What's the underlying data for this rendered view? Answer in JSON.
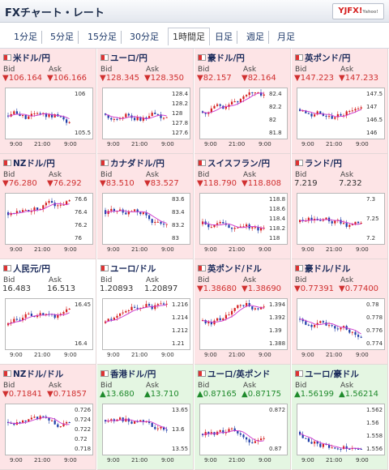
{
  "header": {
    "title": "FXチャート・レート",
    "logo_text": "YJFX!",
    "logo_sub": "Yahoo!"
  },
  "tabs": [
    {
      "label": "1分足",
      "active": false
    },
    {
      "label": "5分足",
      "active": false
    },
    {
      "label": "15分足",
      "active": false
    },
    {
      "label": "30分足",
      "active": false
    },
    {
      "label": "1時間足",
      "active": true
    },
    {
      "label": "日足",
      "active": false
    },
    {
      "label": "週足",
      "active": false
    },
    {
      "label": "月足",
      "active": false
    }
  ],
  "labels": {
    "bid": "Bid",
    "ask": "Ask",
    "times": [
      "9:00",
      "21:00",
      "9:00"
    ]
  },
  "colors": {
    "pink": "#fde4e6",
    "green": "#e4f6e2",
    "up_candle": "#d52020",
    "down_candle": "#1f3ea8",
    "ma_line": "#cc33cc"
  },
  "pairs": [
    {
      "name": "米ドル/円",
      "bid": "▼106.164",
      "ask": "▼106.166",
      "dir": "down",
      "ticks": [
        "106",
        "105.5"
      ]
    },
    {
      "name": "ユーロ/円",
      "bid": "▼128.345",
      "ask": "▼128.350",
      "dir": "down",
      "ticks": [
        "128.4",
        "128.2",
        "128",
        "127.8",
        "127.6"
      ]
    },
    {
      "name": "豪ドル/円",
      "bid": "▼82.157",
      "ask": "▼82.164",
      "dir": "down",
      "ticks": [
        "82.4",
        "82.2",
        "82",
        "81.8"
      ]
    },
    {
      "name": "英ポンド/円",
      "bid": "▼147.223",
      "ask": "▼147.233",
      "dir": "down",
      "ticks": [
        "147.5",
        "147",
        "146.5",
        "146"
      ]
    },
    {
      "name": "NZドル/円",
      "bid": "▼76.280",
      "ask": "▼76.292",
      "dir": "down",
      "ticks": [
        "76.6",
        "76.4",
        "76.2",
        "76"
      ]
    },
    {
      "name": "カナダドル/円",
      "bid": "▼83.510",
      "ask": "▼83.527",
      "dir": "down",
      "ticks": [
        "83.6",
        "83.4",
        "83.2",
        "83"
      ]
    },
    {
      "name": "スイスフラン/円",
      "bid": "▼118.790",
      "ask": "▼118.808",
      "dir": "down",
      "ticks": [
        "118.8",
        "118.6",
        "118.4",
        "118.2",
        "118"
      ]
    },
    {
      "name": "ランド/円",
      "bid": "7.219",
      "ask": "7.232",
      "dir": "flat",
      "ticks": [
        "7.3",
        "7.25",
        "7.2"
      ]
    },
    {
      "name": "人民元/円",
      "bid": "16.483",
      "ask": "16.513",
      "dir": "flat",
      "ticks": [
        "16.45",
        "16.4"
      ]
    },
    {
      "name": "ユーロ/ドル",
      "bid": "1.20893",
      "ask": "1.20897",
      "dir": "flat",
      "ticks": [
        "1.216",
        "1.214",
        "1.212",
        "1.21"
      ]
    },
    {
      "name": "英ポンド/ドル",
      "bid": "▼1.38680",
      "ask": "▼1.38690",
      "dir": "down",
      "ticks": [
        "1.394",
        "1.392",
        "1.39",
        "1.388"
      ]
    },
    {
      "name": "豪ドル/ドル",
      "bid": "▼0.77391",
      "ask": "▼0.77400",
      "dir": "down",
      "ticks": [
        "0.78",
        "0.778",
        "0.776",
        "0.774"
      ]
    },
    {
      "name": "NZドル/ドル",
      "bid": "▼0.71841",
      "ask": "▼0.71857",
      "dir": "down",
      "ticks": [
        "0.726",
        "0.724",
        "0.722",
        "0.72",
        "0.718"
      ]
    },
    {
      "name": "香港ドル/円",
      "bid": "▲13.680",
      "ask": "▲13.710",
      "dir": "up",
      "ticks": [
        "13.65",
        "13.6",
        "13.55"
      ]
    },
    {
      "name": "ユーロ/英ポンド",
      "bid": "▲0.87165",
      "ask": "▲0.87175",
      "dir": "up",
      "ticks": [
        "0.872",
        "0.87"
      ]
    },
    {
      "name": "ユーロ/豪ドル",
      "bid": "▲1.56199",
      "ask": "▲1.56214",
      "dir": "up",
      "ticks": [
        "1.562",
        "1.56",
        "1.558",
        "1.556"
      ]
    }
  ]
}
